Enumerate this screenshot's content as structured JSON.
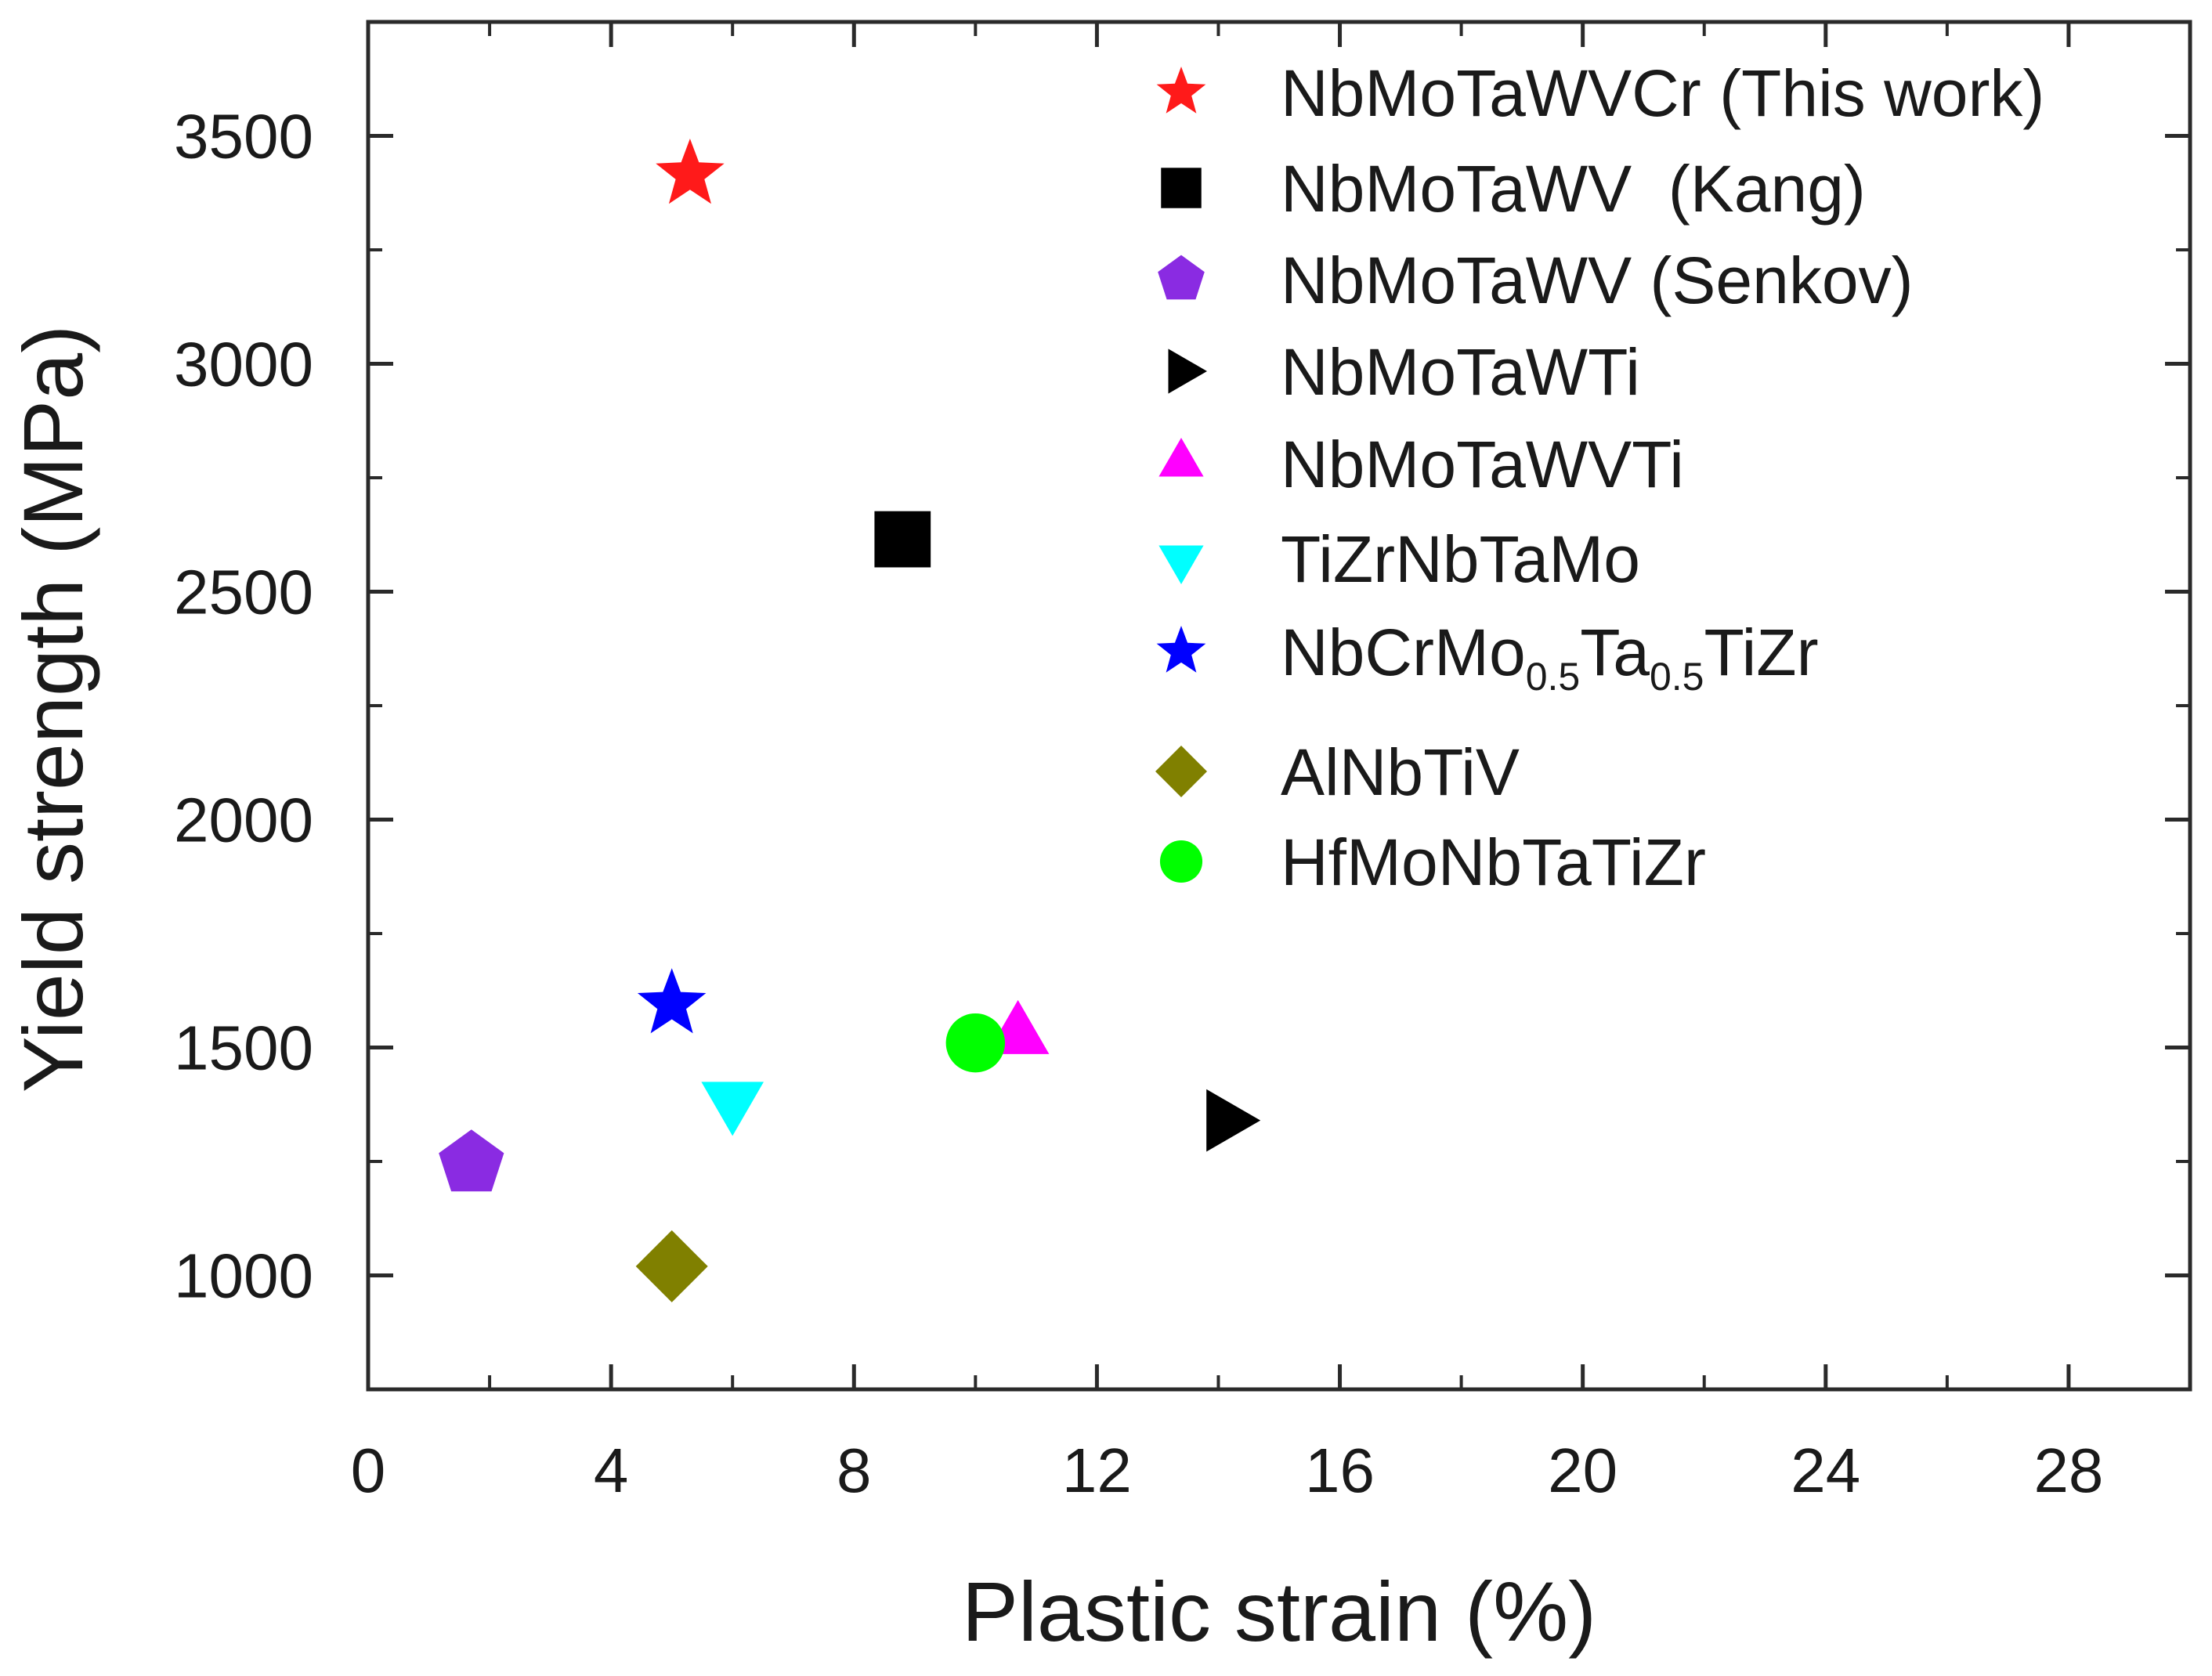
{
  "chart_data": {
    "type": "scatter",
    "xlabel": "Plastic strain (%)",
    "ylabel": "Yield strength (MPa)",
    "xlim": [
      0,
      30
    ],
    "ylim": [
      750,
      3750
    ],
    "xticks": [
      0,
      4,
      8,
      12,
      16,
      20,
      24,
      28
    ],
    "yticks": [
      1000,
      1500,
      2000,
      2500,
      3000,
      3500
    ],
    "xtick_labels": [
      "0",
      "4",
      "8",
      "12",
      "16",
      "20",
      "24",
      "28"
    ],
    "ytick_labels": [
      "1000",
      "1500",
      "2000",
      "2500",
      "3000",
      "3500"
    ],
    "legend_position": "top-right",
    "series": [
      {
        "name": "NbMoTaWVCr (This work)",
        "marker": "star",
        "color": "#ff1a1a",
        "x": 5.3,
        "y": 3415,
        "label_parts": [
          {
            "text": "NbMoTaWVCr (This work)"
          }
        ]
      },
      {
        "name": "NbMoTaWV (Kang)",
        "marker": "square",
        "color": "#000000",
        "x": 8.8,
        "y": 2615,
        "label_parts": [
          {
            "text": "NbMoTaWV  (Kang)"
          }
        ]
      },
      {
        "name": "NbMoTaWV (Senkov)",
        "marker": "pentagon",
        "color": "#8a2be2",
        "x": 1.7,
        "y": 1245,
        "label_parts": [
          {
            "text": "NbMoTaWV (Senkov)"
          }
        ]
      },
      {
        "name": "NbMoTaWTi",
        "marker": "triangle-right",
        "color": "#000000",
        "x": 14.1,
        "y": 1340,
        "label_parts": [
          {
            "text": "NbMoTaWTi"
          }
        ]
      },
      {
        "name": "NbMoTaWVTi",
        "marker": "triangle-up",
        "color": "#ff00ff",
        "x": 10.7,
        "y": 1525,
        "label_parts": [
          {
            "text": "NbMoTaWVTi"
          }
        ]
      },
      {
        "name": "TiZrNbTaMo",
        "marker": "triangle-down",
        "color": "#00ffff",
        "x": 6.0,
        "y": 1385,
        "label_parts": [
          {
            "text": "TiZrNbTaMo"
          }
        ]
      },
      {
        "name": "NbCrMo0.5Ta0.5TiZr",
        "marker": "star",
        "color": "#0000ff",
        "x": 5.0,
        "y": 1595,
        "label_parts": [
          {
            "text": "NbCrMo"
          },
          {
            "text": "0.5",
            "sub": true
          },
          {
            "text": "Ta"
          },
          {
            "text": "0.5",
            "sub": true
          },
          {
            "text": "TiZr"
          }
        ]
      },
      {
        "name": "AlNbTiV",
        "marker": "diamond",
        "color": "#808000",
        "x": 5.0,
        "y": 1020,
        "label_parts": [
          {
            "text": "AlNbTiV"
          }
        ]
      },
      {
        "name": "HfMoNbTaTiZr",
        "marker": "circle",
        "color": "#00ff00",
        "x": 10.0,
        "y": 1510,
        "label_parts": [
          {
            "text": "HfMoNbTaTiZr"
          }
        ]
      }
    ]
  }
}
